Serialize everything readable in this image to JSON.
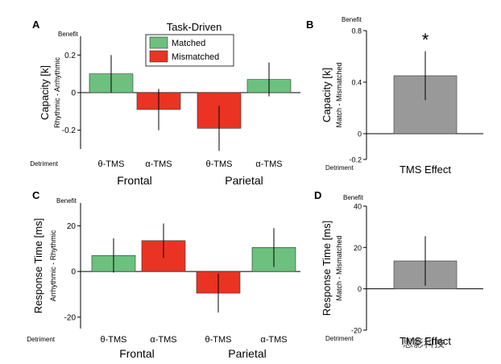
{
  "colors": {
    "matched": "#6cc17e",
    "mismatched": "#ea3323",
    "tms": "#999999",
    "error": "#000000"
  },
  "legend": {
    "title": "Task-Driven",
    "items": [
      "Matched",
      "Mismatched"
    ]
  },
  "watermark": "思影科技",
  "chart_data": [
    {
      "panel": "A",
      "type": "bar",
      "ylabel": "Capacity [k]",
      "ysublabel": "Rhythmic - Arrhythmic",
      "benefit_label": "Benefit",
      "detriment_label": "Detriment",
      "ylim": [
        -0.3,
        0.3
      ],
      "yticks": [
        "0.2",
        "0",
        "-0.2"
      ],
      "ytick_values": [
        0.2,
        0,
        -0.2
      ],
      "categories": [
        "θ-TMS",
        "α-TMS",
        "θ-TMS",
        "α-TMS"
      ],
      "groups": [
        "Frontal",
        "Parietal"
      ],
      "series_colors": [
        "matched",
        "mismatched",
        "mismatched",
        "matched"
      ],
      "values": [
        0.1,
        -0.09,
        -0.19,
        0.07
      ],
      "errors": [
        0.1,
        0.11,
        0.12,
        0.09
      ]
    },
    {
      "panel": "B",
      "type": "bar",
      "ylabel": "Capacity [k]",
      "ysublabel": "Match - Mismatched",
      "benefit_label": "Benefit",
      "detriment_label": "Detriment",
      "ylim": [
        -0.2,
        0.8
      ],
      "yticks": [
        "0.8",
        "0.4",
        "0",
        "-0.2"
      ],
      "ytick_values": [
        0.8,
        0.4,
        0,
        -0.2
      ],
      "categories": [
        "TMS Effect"
      ],
      "series_colors": [
        "tms"
      ],
      "values": [
        0.45
      ],
      "errors": [
        0.19
      ],
      "annotation": "*"
    },
    {
      "panel": "C",
      "type": "bar",
      "ylabel": "Response Time [ms]",
      "ysublabel": "Arrhythmic - Rhythmic",
      "benefit_label": "Benefit",
      "detriment_label": "Detriment",
      "ylim": [
        -25,
        30
      ],
      "yticks": [
        "20",
        "0",
        "-20"
      ],
      "ytick_values": [
        20,
        0,
        -20
      ],
      "categories": [
        "θ-TMS",
        "α-TMS",
        "θ-TMS",
        "α-TMS"
      ],
      "groups": [
        "Frontal",
        "Parietal"
      ],
      "series_colors": [
        "matched",
        "mismatched",
        "mismatched",
        "matched"
      ],
      "values": [
        7,
        13.5,
        -9.5,
        10.5
      ],
      "errors": [
        7.5,
        7.5,
        8.5,
        8.5
      ]
    },
    {
      "panel": "D",
      "type": "bar",
      "ylabel": "Response Time [ms]",
      "ysublabel": "Match - Mismatched",
      "benefit_label": "Benefit",
      "detriment_label": "Detriment",
      "ylim": [
        -20,
        40
      ],
      "yticks": [
        "40",
        "20",
        "0",
        "-20"
      ],
      "ytick_values": [
        40,
        20,
        0,
        -20
      ],
      "categories": [
        "TMS Effect"
      ],
      "series_colors": [
        "tms"
      ],
      "values": [
        13.5
      ],
      "errors": [
        12
      ]
    }
  ]
}
